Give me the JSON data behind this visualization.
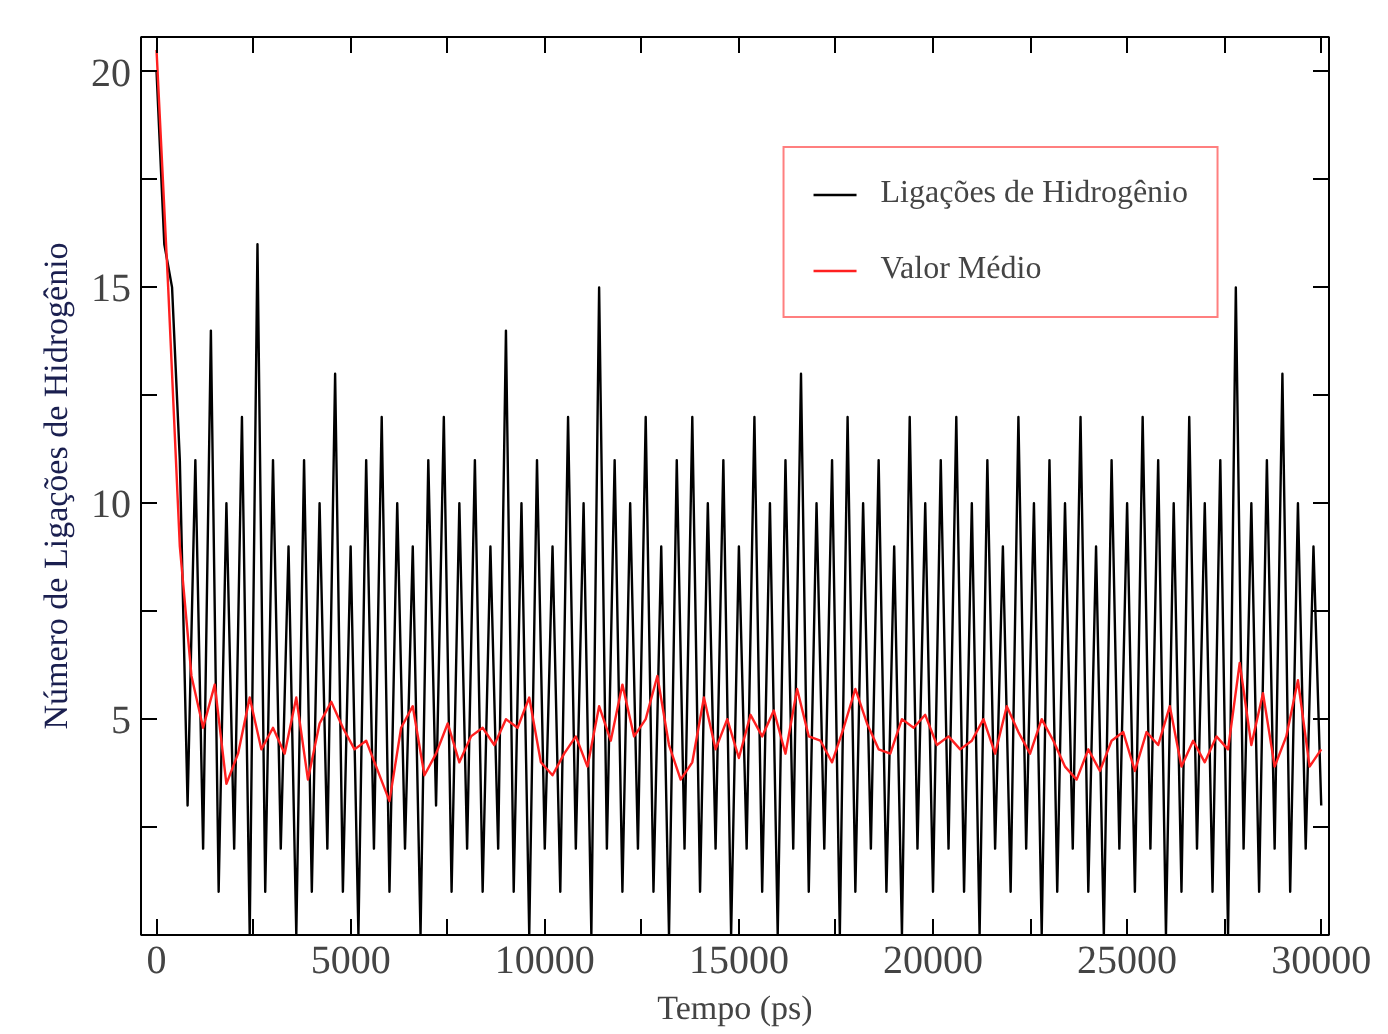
{
  "chart_data": {
    "type": "line",
    "xlabel": "Tempo (ps)",
    "ylabel": "Número de Ligações de Hidrogênio",
    "xlim": [
      -400,
      30200
    ],
    "ylim": [
      0,
      20.8
    ],
    "xticks": [
      0,
      {
        "value": 2500,
        "label": null
      },
      5000,
      {
        "value": 7500,
        "label": null
      },
      10000,
      {
        "value": 12500,
        "label": null
      },
      15000,
      {
        "value": 17500,
        "label": null
      },
      20000,
      {
        "value": 22500,
        "label": null
      },
      25000,
      {
        "value": 27500,
        "label": null
      },
      30000
    ],
    "yticks": [
      {
        "value": 2.5,
        "label": null
      },
      5,
      {
        "value": 7.5,
        "label": null
      },
      10,
      {
        "value": 12.5,
        "label": null
      },
      15,
      {
        "value": 17.5,
        "label": null
      },
      20
    ],
    "grid": false,
    "legend": "top right",
    "marker": "none",
    "line_style": "solid",
    "series": [
      {
        "name": "Ligações de Hidrogênio",
        "color": "#000000",
        "x": [
          0,
          200,
          400,
          600,
          800,
          1000,
          1200,
          1400,
          1600,
          1800,
          2000,
          2200,
          2400,
          2600,
          2800,
          3000,
          3200,
          3400,
          3600,
          3800,
          4000,
          4200,
          4400,
          4600,
          4800,
          5000,
          5200,
          5400,
          5600,
          5800,
          6000,
          6200,
          6400,
          6600,
          6800,
          7000,
          7200,
          7400,
          7600,
          7800,
          8000,
          8200,
          8400,
          8600,
          8800,
          9000,
          9200,
          9400,
          9600,
          9800,
          10000,
          10200,
          10400,
          10600,
          10800,
          11000,
          11200,
          11400,
          11600,
          11800,
          12000,
          12200,
          12400,
          12600,
          12800,
          13000,
          13200,
          13400,
          13600,
          13800,
          14000,
          14200,
          14400,
          14600,
          14800,
          15000,
          15200,
          15400,
          15600,
          15800,
          16000,
          16200,
          16400,
          16600,
          16800,
          17000,
          17200,
          17400,
          17600,
          17800,
          18000,
          18200,
          18400,
          18600,
          18800,
          19000,
          19200,
          19400,
          19600,
          19800,
          20000,
          20200,
          20400,
          20600,
          20800,
          21000,
          21200,
          21400,
          21600,
          21800,
          22000,
          22200,
          22400,
          22600,
          22800,
          23000,
          23200,
          23400,
          23600,
          23800,
          24000,
          24200,
          24400,
          24600,
          24800,
          25000,
          25200,
          25400,
          25600,
          25800,
          26000,
          26200,
          26400,
          26600,
          26800,
          27000,
          27200,
          27400,
          27600,
          27800,
          28000,
          28200,
          28400,
          28600,
          28800,
          29000,
          29200,
          29400,
          29600,
          29800,
          30000
        ],
        "values": [
          20,
          16,
          15,
          11,
          3,
          11,
          2,
          14,
          1,
          10,
          2,
          12,
          0,
          16,
          1,
          11,
          2,
          9,
          0,
          11,
          1,
          10,
          2,
          13,
          1,
          9,
          0,
          11,
          2,
          12,
          1,
          10,
          2,
          9,
          0,
          11,
          3,
          12,
          1,
          10,
          2,
          11,
          1,
          9,
          2,
          14,
          1,
          10,
          0,
          11,
          2,
          9,
          1,
          12,
          2,
          10,
          0,
          15,
          2,
          11,
          1,
          10,
          2,
          12,
          1,
          9,
          0,
          11,
          2,
          12,
          1,
          10,
          2,
          11,
          0,
          9,
          2,
          12,
          1,
          10,
          0,
          11,
          2,
          13,
          1,
          10,
          2,
          11,
          0,
          12,
          1,
          10,
          2,
          11,
          1,
          9,
          0,
          12,
          2,
          10,
          1,
          11,
          2,
          12,
          1,
          10,
          0,
          11,
          2,
          9,
          1,
          12,
          2,
          10,
          0,
          11,
          1,
          10,
          2,
          12,
          1,
          9,
          0,
          11,
          2,
          10,
          1,
          12,
          2,
          11,
          0,
          10,
          1,
          12,
          2,
          10,
          1,
          11,
          0,
          15,
          2,
          10,
          1,
          11,
          2,
          13,
          1,
          10,
          2,
          9,
          3
        ]
      },
      {
        "name": "Valor Médio",
        "color": "#ff2020",
        "x": [
          0,
          300,
          600,
          900,
          1200,
          1500,
          1800,
          2100,
          2400,
          2700,
          3000,
          3300,
          3600,
          3900,
          4200,
          4500,
          4800,
          5100,
          5400,
          5700,
          6000,
          6300,
          6600,
          6900,
          7200,
          7500,
          7800,
          8100,
          8400,
          8700,
          9000,
          9300,
          9600,
          9900,
          10200,
          10500,
          10800,
          11100,
          11400,
          11700,
          12000,
          12300,
          12600,
          12900,
          13200,
          13500,
          13800,
          14100,
          14400,
          14700,
          15000,
          15300,
          15600,
          15900,
          16200,
          16500,
          16800,
          17100,
          17400,
          17700,
          18000,
          18300,
          18600,
          18900,
          19200,
          19500,
          19800,
          20100,
          20400,
          20700,
          21000,
          21300,
          21600,
          21900,
          22200,
          22500,
          22800,
          23100,
          23400,
          23700,
          24000,
          24300,
          24600,
          24900,
          25200,
          25500,
          25800,
          26100,
          26400,
          26700,
          27000,
          27300,
          27600,
          27900,
          28200,
          28500,
          28800,
          29100,
          29400,
          29700,
          30000
        ],
        "values": [
          20.5,
          15,
          9,
          6,
          4.8,
          5.8,
          3.5,
          4.2,
          5.5,
          4.3,
          4.8,
          4.2,
          5.5,
          3.6,
          4.9,
          5.4,
          4.8,
          4.3,
          4.5,
          3.8,
          3.1,
          4.8,
          5.3,
          3.7,
          4.2,
          4.9,
          4.0,
          4.6,
          4.8,
          4.4,
          5.0,
          4.8,
          5.5,
          4.0,
          3.7,
          4.2,
          4.6,
          3.9,
          5.3,
          4.5,
          5.8,
          4.6,
          5.0,
          6.0,
          4.4,
          3.6,
          4.0,
          5.5,
          4.3,
          5.0,
          4.1,
          5.1,
          4.6,
          5.2,
          4.2,
          5.7,
          4.6,
          4.5,
          4.0,
          4.8,
          5.7,
          4.9,
          4.3,
          4.2,
          5.0,
          4.8,
          5.1,
          4.4,
          4.6,
          4.3,
          4.5,
          5.0,
          4.2,
          5.3,
          4.7,
          4.2,
          5.0,
          4.5,
          3.9,
          3.6,
          4.3,
          3.8,
          4.5,
          4.7,
          3.8,
          4.7,
          4.4,
          5.3,
          3.9,
          4.5,
          4.0,
          4.6,
          4.3,
          6.3,
          4.4,
          5.6,
          3.9,
          4.6,
          5.9,
          3.9,
          4.3
        ]
      }
    ]
  }
}
